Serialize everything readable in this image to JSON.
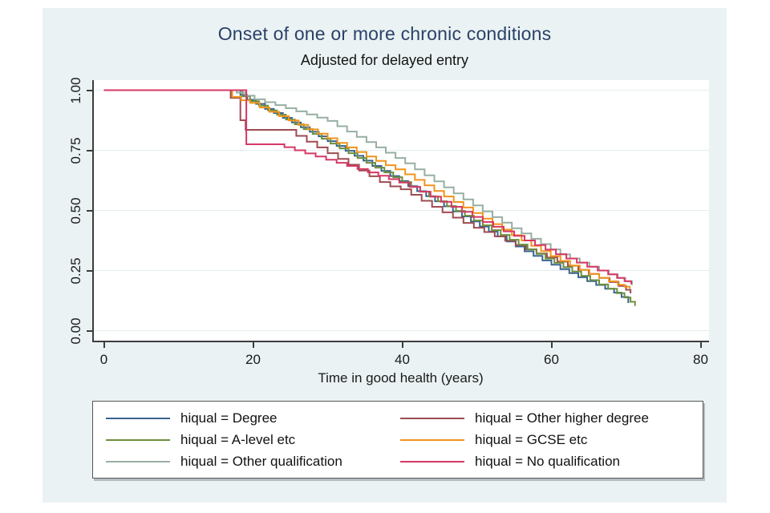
{
  "chart_data": {
    "type": "line",
    "subtype": "kaplan-meier-survival-step",
    "title": "Onset of one or more chronic conditions",
    "subtitle": "Adjusted for delayed entry",
    "xlabel": "Time in good health (years)",
    "ylabel": "",
    "xlim": [
      0,
      80
    ],
    "ylim": [
      0,
      1
    ],
    "x_ticks": [
      0,
      20,
      40,
      60,
      80
    ],
    "x_tick_labels": [
      "0",
      "20",
      "40",
      "60",
      "80"
    ],
    "y_ticks": [
      0,
      0.25,
      0.5,
      0.75,
      1
    ],
    "y_tick_labels": [
      "0.00",
      "0.25",
      "0.50",
      "0.75",
      "1.00"
    ],
    "grid": "horizontal",
    "legend_position": "bottom",
    "colors": {
      "background": "#eaf2f3",
      "plot_background": "#ffffff",
      "grid": "#e4edf0",
      "axis": "#3d3d3d",
      "title": "#2b4168"
    },
    "series": [
      {
        "id": "degree",
        "label": "hiqual = Degree",
        "color": "#3a648f",
        "points": [
          [
            0,
            1
          ],
          [
            18.3,
            0.98
          ],
          [
            19.2,
            0.96
          ],
          [
            20.4,
            0.943
          ],
          [
            21.6,
            0.922
          ],
          [
            22.8,
            0.905
          ],
          [
            24,
            0.885
          ],
          [
            25.2,
            0.866
          ],
          [
            26.4,
            0.846
          ],
          [
            27.6,
            0.827
          ],
          [
            28.8,
            0.808
          ],
          [
            30,
            0.788
          ],
          [
            31.2,
            0.768
          ],
          [
            32.4,
            0.748
          ],
          [
            33.6,
            0.727
          ],
          [
            34.8,
            0.707
          ],
          [
            36,
            0.685
          ],
          [
            37.2,
            0.664
          ],
          [
            38.4,
            0.643
          ],
          [
            39.6,
            0.622
          ],
          [
            40.8,
            0.601
          ],
          [
            42,
            0.58
          ],
          [
            43.2,
            0.559
          ],
          [
            44.4,
            0.538
          ],
          [
            45.6,
            0.517
          ],
          [
            46.8,
            0.496
          ],
          [
            48,
            0.475
          ],
          [
            49.2,
            0.454
          ],
          [
            50.4,
            0.433
          ],
          [
            51.6,
            0.412
          ],
          [
            52.8,
            0.392
          ],
          [
            54,
            0.371
          ],
          [
            55.2,
            0.35
          ],
          [
            56.4,
            0.33
          ],
          [
            57.6,
            0.311
          ],
          [
            58.8,
            0.292
          ],
          [
            60,
            0.274
          ],
          [
            61.2,
            0.256
          ],
          [
            62.4,
            0.239
          ],
          [
            63.6,
            0.222
          ],
          [
            64.8,
            0.206
          ],
          [
            66,
            0.19
          ],
          [
            67.2,
            0.174
          ],
          [
            68.4,
            0.158
          ],
          [
            69.4,
            0.14
          ],
          [
            70.3,
            0.115
          ]
        ]
      },
      {
        "id": "other-higher-degree",
        "label": "hiqual = Other higher degree",
        "color": "#9d4b51",
        "points": [
          [
            0,
            1
          ],
          [
            17,
            0.968
          ],
          [
            18.3,
            0.875
          ],
          [
            19,
            0.835
          ],
          [
            25.8,
            0.81
          ],
          [
            27.2,
            0.786
          ],
          [
            28.6,
            0.762
          ],
          [
            30,
            0.738
          ],
          [
            31.4,
            0.714
          ],
          [
            32.8,
            0.69
          ],
          [
            34.2,
            0.666
          ],
          [
            35.6,
            0.642
          ],
          [
            37,
            0.618
          ],
          [
            38.4,
            0.6
          ],
          [
            39.8,
            0.588
          ],
          [
            41.2,
            0.565
          ],
          [
            42.6,
            0.54
          ],
          [
            44,
            0.515
          ],
          [
            45.4,
            0.492
          ],
          [
            46.8,
            0.47
          ],
          [
            48.2,
            0.448
          ],
          [
            49.6,
            0.428
          ],
          [
            51,
            0.41
          ],
          [
            52.4,
            0.392
          ],
          [
            53.8,
            0.374
          ],
          [
            55.2,
            0.356
          ],
          [
            56.6,
            0.338
          ],
          [
            58,
            0.321
          ],
          [
            59.4,
            0.304
          ],
          [
            60.8,
            0.287
          ],
          [
            62.2,
            0.27
          ],
          [
            63.6,
            0.253
          ],
          [
            65,
            0.236
          ],
          [
            66.4,
            0.219
          ],
          [
            67.8,
            0.202
          ],
          [
            69,
            0.186
          ],
          [
            70,
            0.17
          ],
          [
            70.6,
            0.155
          ]
        ]
      },
      {
        "id": "a-level",
        "label": "hiqual = A-level etc",
        "color": "#6d8f3d",
        "points": [
          [
            0,
            1
          ],
          [
            18.6,
            0.974
          ],
          [
            19.6,
            0.954
          ],
          [
            20.8,
            0.936
          ],
          [
            22,
            0.916
          ],
          [
            23.2,
            0.898
          ],
          [
            24.4,
            0.878
          ],
          [
            25.6,
            0.858
          ],
          [
            26.8,
            0.838
          ],
          [
            28,
            0.818
          ],
          [
            29.2,
            0.798
          ],
          [
            30.4,
            0.778
          ],
          [
            31.6,
            0.758
          ],
          [
            32.8,
            0.738
          ],
          [
            34,
            0.718
          ],
          [
            35.2,
            0.698
          ],
          [
            36.4,
            0.678
          ],
          [
            37.6,
            0.658
          ],
          [
            38.8,
            0.638
          ],
          [
            40,
            0.618
          ],
          [
            41.2,
            0.598
          ],
          [
            42.4,
            0.578
          ],
          [
            43.6,
            0.558
          ],
          [
            44.8,
            0.538
          ],
          [
            46,
            0.518
          ],
          [
            47.2,
            0.498
          ],
          [
            48.4,
            0.478
          ],
          [
            49.6,
            0.458
          ],
          [
            50.8,
            0.438
          ],
          [
            52,
            0.418
          ],
          [
            53.2,
            0.398
          ],
          [
            54.4,
            0.378
          ],
          [
            55.6,
            0.358
          ],
          [
            56.8,
            0.338
          ],
          [
            58,
            0.319
          ],
          [
            59.2,
            0.3
          ],
          [
            60.4,
            0.282
          ],
          [
            61.6,
            0.264
          ],
          [
            62.8,
            0.246
          ],
          [
            64,
            0.228
          ],
          [
            65.2,
            0.21
          ],
          [
            66.4,
            0.192
          ],
          [
            67.6,
            0.174
          ],
          [
            68.8,
            0.156
          ],
          [
            69.8,
            0.138
          ],
          [
            70.6,
            0.12
          ],
          [
            71.2,
            0.103
          ]
        ]
      },
      {
        "id": "gcse",
        "label": "hiqual = GCSE etc",
        "color": "#f0941d",
        "points": [
          [
            0,
            1
          ],
          [
            17.2,
            0.972
          ],
          [
            18.4,
            0.958
          ],
          [
            19.6,
            0.947
          ],
          [
            20.9,
            0.928
          ],
          [
            22.2,
            0.91
          ],
          [
            23.5,
            0.892
          ],
          [
            24.8,
            0.874
          ],
          [
            26.1,
            0.856
          ],
          [
            27.4,
            0.837
          ],
          [
            28.7,
            0.819
          ],
          [
            30,
            0.8
          ],
          [
            31.3,
            0.781
          ],
          [
            32.6,
            0.762
          ],
          [
            33.9,
            0.743
          ],
          [
            35.2,
            0.724
          ],
          [
            36.5,
            0.706
          ],
          [
            37.8,
            0.688
          ],
          [
            39.1,
            0.671
          ],
          [
            40.4,
            0.65
          ],
          [
            41.7,
            0.627
          ],
          [
            43,
            0.604
          ],
          [
            44.3,
            0.581
          ],
          [
            45.6,
            0.558
          ],
          [
            46.9,
            0.535
          ],
          [
            48.2,
            0.512
          ],
          [
            49.5,
            0.489
          ],
          [
            50.8,
            0.466
          ],
          [
            52.1,
            0.443
          ],
          [
            53.4,
            0.42
          ],
          [
            54.7,
            0.397
          ],
          [
            56,
            0.375
          ],
          [
            57.3,
            0.353
          ],
          [
            58.6,
            0.331
          ],
          [
            59.9,
            0.31
          ],
          [
            61.2,
            0.29
          ],
          [
            62.5,
            0.271
          ],
          [
            63.8,
            0.253
          ],
          [
            65.1,
            0.236
          ],
          [
            66.4,
            0.22
          ],
          [
            67.7,
            0.205
          ],
          [
            68.9,
            0.191
          ],
          [
            69.8,
            0.183
          ],
          [
            70.5,
            0.175
          ]
        ]
      },
      {
        "id": "other-qualification",
        "label": "hiqual = Other qualification",
        "color": "#97afa2",
        "points": [
          [
            0,
            1
          ],
          [
            17.8,
            0.99
          ],
          [
            19,
            0.977
          ],
          [
            20.2,
            0.962
          ],
          [
            21.6,
            0.95
          ],
          [
            23,
            0.938
          ],
          [
            24.4,
            0.925
          ],
          [
            25.8,
            0.912
          ],
          [
            27.2,
            0.899
          ],
          [
            28.6,
            0.886
          ],
          [
            30,
            0.872
          ],
          [
            31.3,
            0.85
          ],
          [
            32.6,
            0.828
          ],
          [
            33.9,
            0.806
          ],
          [
            35.2,
            0.784
          ],
          [
            36.5,
            0.762
          ],
          [
            37.8,
            0.74
          ],
          [
            39.1,
            0.718
          ],
          [
            40.4,
            0.696
          ],
          [
            41.7,
            0.671
          ],
          [
            43,
            0.646
          ],
          [
            44.3,
            0.621
          ],
          [
            45.6,
            0.596
          ],
          [
            46.9,
            0.571
          ],
          [
            48.2,
            0.546
          ],
          [
            49.5,
            0.521
          ],
          [
            50.8,
            0.496
          ],
          [
            52.1,
            0.472
          ],
          [
            53.4,
            0.449
          ],
          [
            54.7,
            0.426
          ],
          [
            56,
            0.404
          ],
          [
            57.3,
            0.382
          ],
          [
            58.6,
            0.36
          ],
          [
            59.9,
            0.338
          ],
          [
            61.2,
            0.317
          ],
          [
            62.5,
            0.3
          ],
          [
            63.8,
            0.283
          ],
          [
            65.1,
            0.266
          ],
          [
            66.4,
            0.25
          ],
          [
            67.7,
            0.234
          ],
          [
            68.9,
            0.219
          ],
          [
            69.9,
            0.205
          ],
          [
            70.8,
            0.19
          ]
        ]
      },
      {
        "id": "no-qualification",
        "label": "hiqual = No qualification",
        "color": "#d63865",
        "points": [
          [
            0,
            1
          ],
          [
            19.1,
            0.775
          ],
          [
            24.2,
            0.763
          ],
          [
            25.6,
            0.75
          ],
          [
            27,
            0.737
          ],
          [
            28.4,
            0.724
          ],
          [
            29.8,
            0.711
          ],
          [
            31.2,
            0.698
          ],
          [
            32.6,
            0.685
          ],
          [
            34,
            0.672
          ],
          [
            35.4,
            0.658
          ],
          [
            36.8,
            0.644
          ],
          [
            38.2,
            0.63
          ],
          [
            39.6,
            0.616
          ],
          [
            41,
            0.598
          ],
          [
            42.4,
            0.578
          ],
          [
            43.8,
            0.557
          ],
          [
            45.2,
            0.536
          ],
          [
            46.6,
            0.515
          ],
          [
            48,
            0.494
          ],
          [
            49.4,
            0.473
          ],
          [
            50.8,
            0.452
          ],
          [
            52.2,
            0.432
          ],
          [
            53.6,
            0.413
          ],
          [
            55,
            0.394
          ],
          [
            56.4,
            0.375
          ],
          [
            57.8,
            0.356
          ],
          [
            59.2,
            0.337
          ],
          [
            60.6,
            0.318
          ],
          [
            62,
            0.3
          ],
          [
            63.4,
            0.283
          ],
          [
            64.8,
            0.266
          ],
          [
            66.2,
            0.25
          ],
          [
            67.6,
            0.234
          ],
          [
            68.8,
            0.219
          ],
          [
            69.8,
            0.206
          ],
          [
            70.7,
            0.193
          ]
        ]
      }
    ]
  }
}
